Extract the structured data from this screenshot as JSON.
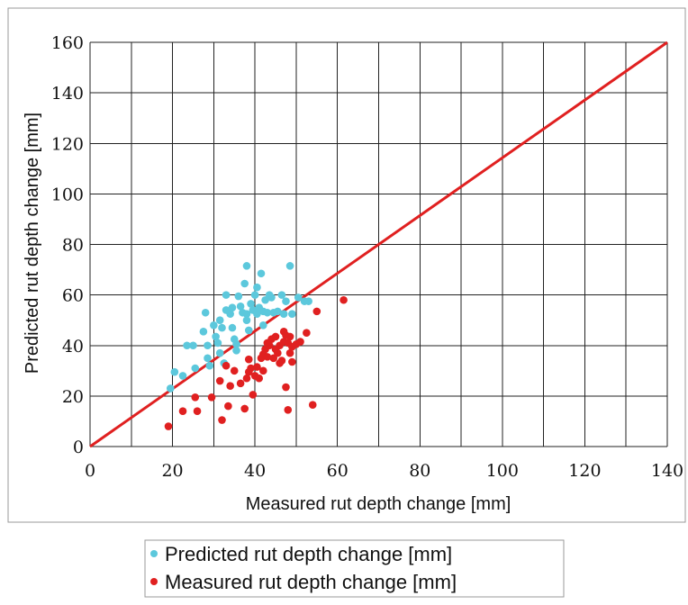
{
  "chart_data": {
    "type": "scatter",
    "xlabel": "Measured rut depth change [mm]",
    "ylabel": "Predicted rut depth change [mm]",
    "xlim": [
      0,
      140
    ],
    "ylim": [
      0,
      160
    ],
    "x_ticks": [
      0,
      20,
      40,
      60,
      80,
      100,
      120,
      140
    ],
    "y_ticks": [
      0,
      20,
      40,
      60,
      80,
      100,
      120,
      140,
      160
    ],
    "x_gridlines": [
      0,
      10,
      20,
      30,
      40,
      50,
      60,
      70,
      80,
      90,
      100,
      110,
      120,
      130,
      140
    ],
    "grid": true,
    "legend_position": "bottom",
    "reference_line": {
      "x": [
        0,
        140
      ],
      "y": [
        0,
        160
      ],
      "color": "#e02020"
    },
    "series": [
      {
        "name": "Predicted rut depth change [mm]",
        "color": "#5cc8dc",
        "points": [
          [
            19.5,
            23
          ],
          [
            20.5,
            29.5
          ],
          [
            22.5,
            28
          ],
          [
            23.5,
            40
          ],
          [
            25,
            40
          ],
          [
            25.5,
            31
          ],
          [
            27.5,
            45.5
          ],
          [
            28,
            53
          ],
          [
            28.5,
            35
          ],
          [
            28.5,
            40
          ],
          [
            29,
            32
          ],
          [
            30,
            48
          ],
          [
            30.5,
            43.5
          ],
          [
            31,
            41
          ],
          [
            31.5,
            37
          ],
          [
            31.5,
            50
          ],
          [
            32,
            47
          ],
          [
            32.5,
            33
          ],
          [
            33,
            54
          ],
          [
            33,
            60
          ],
          [
            34,
            52.5
          ],
          [
            34.5,
            55
          ],
          [
            34.5,
            47
          ],
          [
            35,
            42.5
          ],
          [
            35.5,
            38
          ],
          [
            35.5,
            40.5
          ],
          [
            36,
            59.5
          ],
          [
            36.5,
            55.5
          ],
          [
            37,
            53
          ],
          [
            37.5,
            64.5
          ],
          [
            38,
            71.5
          ],
          [
            38,
            52.5
          ],
          [
            38,
            50
          ],
          [
            38.5,
            46
          ],
          [
            39,
            56.5
          ],
          [
            39.5,
            54
          ],
          [
            40,
            60
          ],
          [
            40.5,
            52.5
          ],
          [
            40.5,
            63
          ],
          [
            41,
            55
          ],
          [
            41.5,
            68.5
          ],
          [
            42,
            53.5
          ],
          [
            42,
            48
          ],
          [
            42.5,
            58
          ],
          [
            43,
            53
          ],
          [
            43.5,
            60
          ],
          [
            44,
            59
          ],
          [
            44.5,
            53
          ],
          [
            45.5,
            53.5
          ],
          [
            46.5,
            60
          ],
          [
            47,
            52.5
          ],
          [
            47.5,
            57.5
          ],
          [
            48.5,
            71.5
          ],
          [
            49,
            52.5
          ],
          [
            50.5,
            59
          ],
          [
            52,
            57.5
          ],
          [
            53,
            57.5
          ]
        ]
      },
      {
        "name": "Measured rut depth change [mm]",
        "color": "#e02020",
        "points": [
          [
            19,
            8
          ],
          [
            22.5,
            14
          ],
          [
            25.5,
            19.5
          ],
          [
            26,
            14
          ],
          [
            29.5,
            19.5
          ],
          [
            31.5,
            26
          ],
          [
            32,
            10.5
          ],
          [
            33,
            32
          ],
          [
            33.5,
            16
          ],
          [
            34,
            24
          ],
          [
            35,
            30
          ],
          [
            36.5,
            25
          ],
          [
            37.5,
            15
          ],
          [
            38,
            27
          ],
          [
            38.5,
            34.5
          ],
          [
            38.5,
            29.5
          ],
          [
            39,
            31
          ],
          [
            39.5,
            20.5
          ],
          [
            40,
            28
          ],
          [
            40.5,
            31.5
          ],
          [
            41,
            27
          ],
          [
            41.5,
            35
          ],
          [
            42,
            36.5
          ],
          [
            42,
            30
          ],
          [
            42.5,
            38.5
          ],
          [
            43,
            35.5
          ],
          [
            43,
            41
          ],
          [
            43.5,
            40
          ],
          [
            44,
            42.5
          ],
          [
            44.5,
            35
          ],
          [
            45,
            43.5
          ],
          [
            45,
            38.5
          ],
          [
            45.5,
            37
          ],
          [
            46,
            40
          ],
          [
            46,
            33
          ],
          [
            46.5,
            34
          ],
          [
            47,
            41.5
          ],
          [
            47,
            45.5
          ],
          [
            47.5,
            44
          ],
          [
            47.5,
            23.5
          ],
          [
            48,
            41
          ],
          [
            48,
            14.5
          ],
          [
            48.5,
            37
          ],
          [
            48.5,
            43.5
          ],
          [
            49,
            33.5
          ],
          [
            49,
            39.5
          ],
          [
            50,
            40.5
          ],
          [
            51,
            41.5
          ],
          [
            52.5,
            45
          ],
          [
            54,
            16.5
          ],
          [
            55,
            53.5
          ],
          [
            61.5,
            58
          ]
        ]
      }
    ]
  },
  "legend": {
    "items": [
      {
        "label": "Predicted rut depth change [mm]",
        "color": "#5cc8dc"
      },
      {
        "label": "Measured rut depth change [mm]",
        "color": "#e02020"
      }
    ]
  }
}
